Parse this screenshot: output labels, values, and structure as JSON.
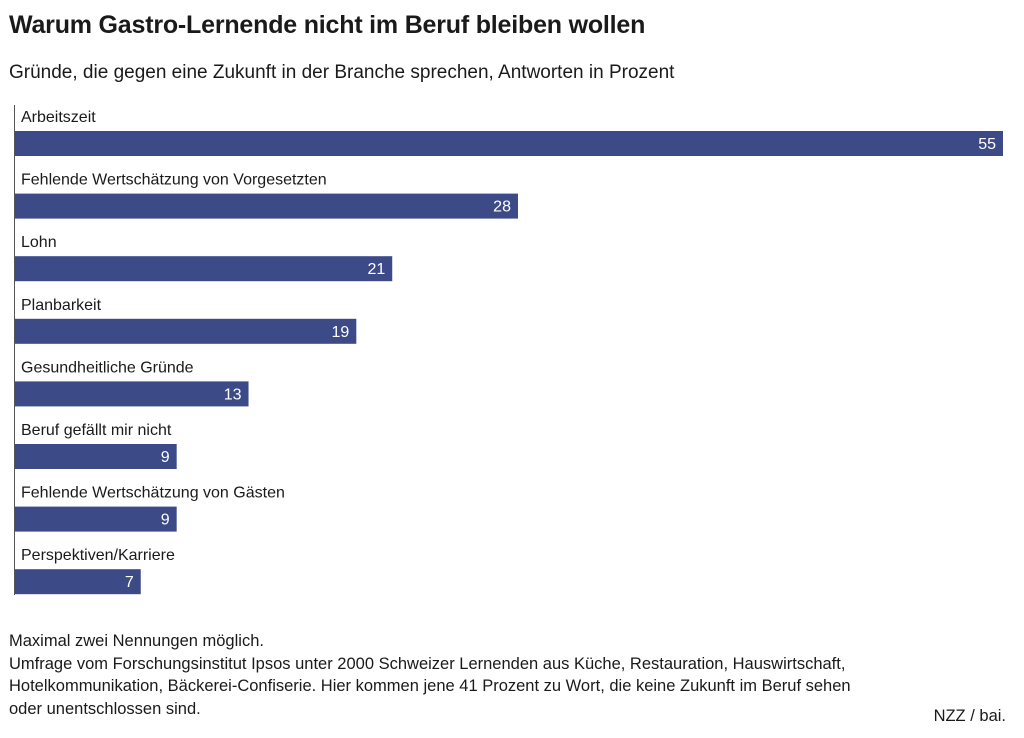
{
  "title": "Warum Gastro-Lernende nicht im Beruf bleiben wollen",
  "subtitle": "Gründe, die gegen eine Zukunft in der Branche sprechen, Antworten in Prozent",
  "notes": [
    "Maximal zwei Nennungen möglich.",
    "Umfrage vom Forschungsinstitut Ipsos unter 2000 Schweizer Lernenden aus Küche, Restauration, Hauswirtschaft,",
    "Hotelkommunikation, Bäckerei-Confiserie. Hier kommen jene 41 Prozent zu Wort, die keine Zukunft im Beruf sehen",
    "oder unentschlossen sind."
  ],
  "credit": "NZZ / bai.",
  "colors": {
    "bar": "#3d4a88",
    "bar_label": "#ffffff",
    "axis": "#555555",
    "text": "#1a1a1a"
  },
  "chart_data": {
    "type": "bar",
    "orientation": "horizontal",
    "categories": [
      "Arbeitszeit",
      "Fehlende Wertschätzung von Vorgesetzten",
      "Lohn",
      "Planbarkeit",
      "Gesundheitliche Gründe",
      "Beruf gefällt mir nicht",
      "Fehlende Wertschätzung von Gästen",
      "Perspektiven/Karriere"
    ],
    "values": [
      55,
      28,
      21,
      19,
      13,
      9,
      9,
      7
    ],
    "xlim": [
      0,
      55
    ],
    "grid": false,
    "legend": "none",
    "data_labels": true
  }
}
